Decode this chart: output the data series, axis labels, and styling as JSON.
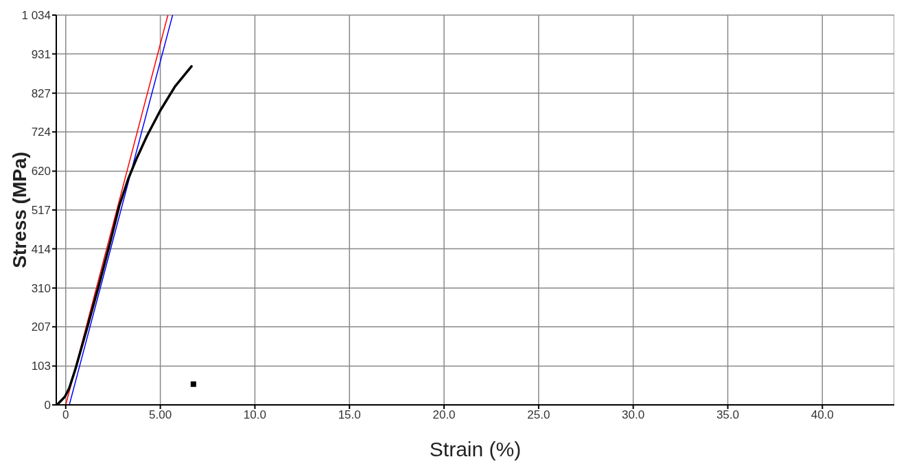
{
  "chart_data": {
    "type": "line",
    "xlabel": "Strain (%)",
    "ylabel": "Stress (MPa)",
    "xlim": [
      -0.5,
      43.8
    ],
    "ylim": [
      0,
      1034
    ],
    "xticks": [
      0,
      {
        "value": 5,
        "label": "5.00"
      },
      {
        "value": 10,
        "label": "10.0"
      },
      {
        "value": 15,
        "label": "15.0"
      },
      {
        "value": 20,
        "label": "20.0"
      },
      {
        "value": 25,
        "label": "25.0"
      },
      {
        "value": 30,
        "label": "30.0"
      },
      {
        "value": 35,
        "label": "35.0"
      },
      {
        "value": 40,
        "label": "40.0"
      }
    ],
    "yticks": [
      0,
      103,
      207,
      310,
      414,
      517,
      620,
      724,
      827,
      931,
      {
        "value": 1034,
        "label": "1 034"
      }
    ],
    "grid": true,
    "marker": "none",
    "line_style": "solid",
    "series": [
      {
        "color": "#ff0000",
        "x": [
          0,
          5.4
        ],
        "values": [
          0,
          1034
        ]
      },
      {
        "color": "#0000ff",
        "x": [
          0.19,
          5.65
        ],
        "values": [
          0,
          1034
        ]
      },
      {
        "color": "#000000",
        "x": [
          -0.46,
          -0.04,
          0.19,
          0.5,
          1.13,
          1.74,
          2.36,
          2.83,
          3.3,
          3.76,
          4.3,
          5.0,
          5.78,
          6.65
        ],
        "values": [
          0,
          22,
          45,
          93,
          204,
          315,
          433,
          528,
          599,
          655,
          714,
          781,
          845,
          898
        ]
      },
      {
        "type": "scatter",
        "marker": "square",
        "color": "#000000",
        "x": [
          6.75
        ],
        "values": [
          55
        ]
      }
    ]
  }
}
